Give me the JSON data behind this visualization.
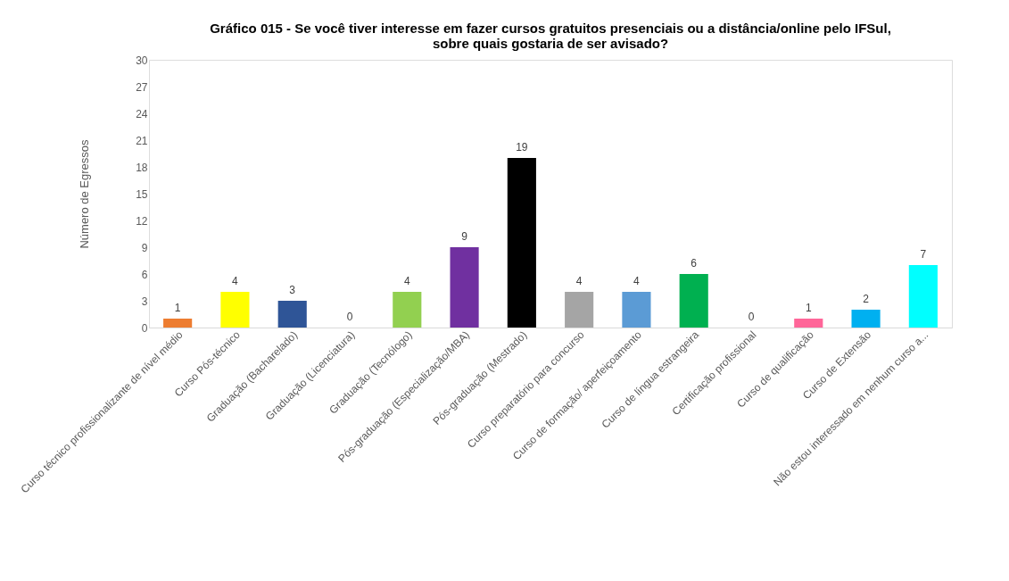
{
  "chart_data": {
    "type": "bar",
    "title": "Gráfico 015 - Se você tiver interesse em fazer cursos gratuitos presenciais ou a distância/online pelo IFSul,\nsobre quais gostaria de ser avisado?",
    "ylabel": "Número de Egressos",
    "categories": [
      "Curso técnico profissionalizante de nível médio",
      "Curso Pós-técnico",
      "Graduação (Bacharelado)",
      "Graduação (Licenciatura)",
      "Graduação (Tecnólogo)",
      "Pós-graduação  (Especialização/MBA)",
      "Pós-graduação (Mestrado)",
      "Curso preparatório para concurso",
      "Curso de formação/ aperfeiçoamento",
      "Curso de língua estrangeira",
      "Certificação profissional",
      "Curso de qualificação",
      "Curso de Extensão",
      "Não estou interessado em nenhum curso a..."
    ],
    "values": [
      1,
      4,
      3,
      0,
      4,
      9,
      19,
      4,
      4,
      6,
      0,
      1,
      2,
      7
    ],
    "colors": [
      "#ed7d31",
      "#ffff00",
      "#2f5597",
      "#7f7f7f",
      "#92d050",
      "#7030a0",
      "#000000",
      "#a5a5a5",
      "#5b9bd5",
      "#00b050",
      "#7f7f7f",
      "#ff6699",
      "#00b0f0",
      "#00ffff"
    ],
    "ylim": [
      0,
      30
    ],
    "yticks": [
      0,
      3,
      6,
      9,
      12,
      15,
      18,
      21,
      24,
      27,
      30
    ],
    "grid": false,
    "data_labels": true
  }
}
